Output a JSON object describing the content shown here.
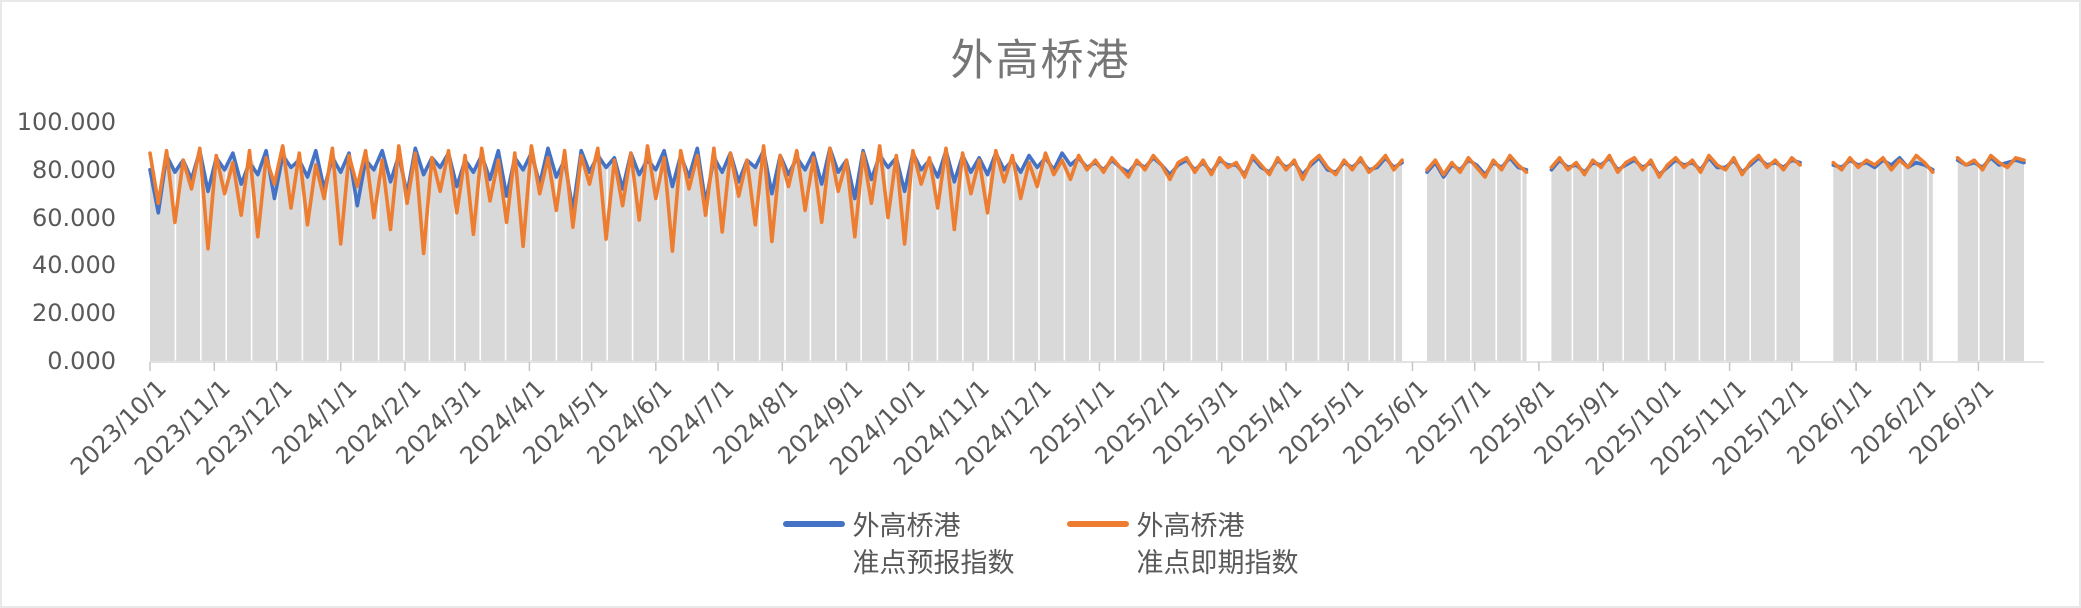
{
  "chart_data": {
    "type": "line",
    "title": "外高桥港",
    "y_axis": {
      "tick_labels": [
        "100.000",
        "80.000",
        "60.000",
        "40.000",
        "20.000",
        "0.000"
      ],
      "tick_values": [
        100,
        80,
        60,
        40,
        20,
        0
      ],
      "ylim": [
        0,
        100
      ]
    },
    "x_axis": {
      "tick_labels": [
        "2023/10/1",
        "2023/11/1",
        "2023/12/1",
        "2024/1/1",
        "2024/2/1",
        "2024/3/1",
        "2024/4/1",
        "2024/5/1",
        "2024/6/1",
        "2024/7/1",
        "2024/8/1",
        "2024/9/1",
        "2024/10/1",
        "2024/11/1",
        "2024/12/1",
        "2025/1/1",
        "2025/2/1",
        "2025/3/1",
        "2025/4/1",
        "2025/5/1",
        "2025/6/1",
        "2025/7/1",
        "2025/8/1",
        "2025/9/1",
        "2025/10/1",
        "2025/11/1",
        "2025/12/1",
        "2026/1/1",
        "2026/2/1",
        "2026/3/1"
      ]
    },
    "sample_interval_days": 4,
    "start_date": "2023/10/1",
    "grid": "vertical-white-lines-on-gray-area",
    "area_fill_color": "#d9d9d9",
    "legend_position": "bottom",
    "series": [
      {
        "name": "外高桥港准点预报指数",
        "color": "#4472C4",
        "values": [
          80,
          62,
          86,
          79,
          84,
          76,
          88,
          71,
          85,
          80,
          87,
          74,
          83,
          78,
          88,
          68,
          86,
          81,
          84,
          77,
          88,
          72,
          85,
          79,
          87,
          65,
          84,
          80,
          88,
          75,
          86,
          70,
          89,
          78,
          85,
          81,
          87,
          73,
          84,
          79,
          86,
          76,
          88,
          69,
          85,
          80,
          87,
          74,
          89,
          77,
          84,
          63,
          88,
          79,
          86,
          81,
          85,
          72,
          87,
          78,
          84,
          80,
          88,
          73,
          86,
          77,
          89,
          66,
          85,
          79,
          87,
          75,
          84,
          81,
          88,
          70,
          86,
          78,
          85,
          80,
          87,
          74,
          89,
          79,
          84,
          68,
          88,
          76,
          86,
          81,
          85,
          71,
          87,
          80,
          84,
          77,
          88,
          75,
          86,
          79,
          85,
          78,
          87,
          80,
          84,
          79,
          86,
          81,
          85,
          80,
          87,
          82,
          85,
          81,
          83,
          80,
          84,
          81,
          79,
          83,
          81,
          85,
          82,
          78,
          82,
          84,
          80,
          83,
          79,
          84,
          82,
          82,
          78,
          85,
          81,
          79,
          84,
          81,
          83,
          78,
          82,
          85,
          80,
          79,
          83,
          81,
          84,
          80,
          81,
          85,
          81,
          83,
          null,
          null,
          79,
          83,
          77,
          82,
          80,
          84,
          82,
          78,
          83,
          81,
          85,
          81,
          80,
          null,
          null,
          80,
          84,
          81,
          82,
          79,
          83,
          82,
          85,
          80,
          82,
          84,
          81,
          83,
          78,
          81,
          84,
          82,
          83,
          80,
          85,
          81,
          81,
          84,
          79,
          82,
          85,
          82,
          83,
          81,
          84,
          83,
          null,
          null,
          null,
          82,
          81,
          84,
          82,
          83,
          81,
          84,
          82,
          85,
          81,
          83,
          82,
          80,
          null,
          null,
          84,
          82,
          83,
          81,
          85,
          82,
          83,
          84,
          83
        ]
      },
      {
        "name": "外高桥港准点即期指数",
        "color": "#ED7D31",
        "values": [
          87,
          66,
          88,
          58,
          84,
          72,
          89,
          47,
          86,
          70,
          83,
          61,
          88,
          52,
          85,
          74,
          90,
          64,
          87,
          57,
          82,
          68,
          89,
          49,
          86,
          73,
          88,
          60,
          84,
          55,
          90,
          66,
          87,
          45,
          85,
          71,
          88,
          62,
          86,
          53,
          89,
          67,
          84,
          58,
          87,
          48,
          90,
          70,
          85,
          63,
          88,
          56,
          86,
          74,
          89,
          51,
          84,
          65,
          87,
          59,
          90,
          68,
          85,
          46,
          88,
          72,
          86,
          61,
          89,
          54,
          87,
          69,
          84,
          57,
          90,
          50,
          86,
          73,
          88,
          63,
          85,
          58,
          89,
          71,
          84,
          52,
          87,
          66,
          90,
          60,
          86,
          49,
          88,
          74,
          85,
          64,
          89,
          55,
          87,
          70,
          84,
          62,
          88,
          75,
          86,
          68,
          83,
          73,
          87,
          78,
          84,
          76,
          86,
          80,
          84,
          79,
          85,
          81,
          77,
          84,
          80,
          86,
          82,
          76,
          83,
          85,
          79,
          84,
          78,
          85,
          81,
          83,
          77,
          86,
          82,
          78,
          85,
          80,
          84,
          76,
          83,
          86,
          81,
          78,
          84,
          80,
          85,
          79,
          82,
          86,
          80,
          84,
          null,
          null,
          80,
          84,
          78,
          83,
          79,
          85,
          81,
          77,
          84,
          80,
          86,
          82,
          79,
          null,
          null,
          81,
          85,
          80,
          83,
          78,
          84,
          81,
          86,
          79,
          83,
          85,
          80,
          84,
          77,
          82,
          85,
          81,
          84,
          79,
          86,
          82,
          80,
          85,
          78,
          83,
          86,
          81,
          84,
          80,
          85,
          82,
          null,
          null,
          null,
          83,
          80,
          85,
          81,
          84,
          82,
          85,
          80,
          84,
          81,
          86,
          83,
          79,
          null,
          null,
          85,
          82,
          84,
          80,
          86,
          83,
          81,
          85,
          84
        ]
      }
    ]
  },
  "legend": {
    "items": [
      {
        "line1": "外高桥港",
        "line2": "准点预报指数",
        "color": "#4472C4"
      },
      {
        "line1": "外高桥港",
        "line2": "准点即期指数",
        "color": "#ED7D31"
      }
    ]
  },
  "colors": {
    "title_text": "#767676",
    "axis_text": "#595959",
    "axis_line": "#d9d9d9",
    "tick_mark": "#c6c6c6",
    "area_fill": "#d9d9d9",
    "gridline": "#ffffff",
    "frame_border": "#e8e8e8"
  }
}
